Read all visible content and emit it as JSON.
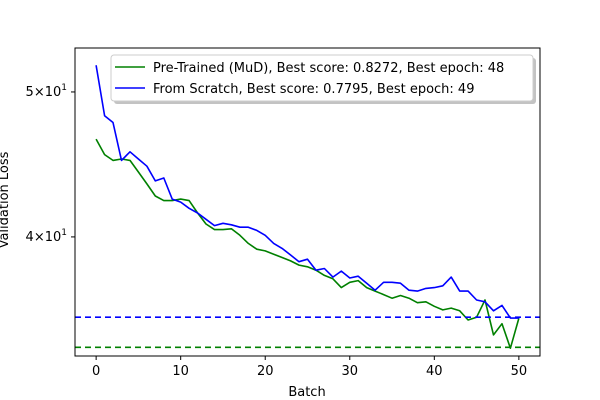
{
  "chart_data": {
    "type": "line",
    "title": "",
    "xlabel": "Batch",
    "ylabel": "Validation Loss",
    "yscale": "log",
    "xlim": [
      -2.5,
      52.5
    ],
    "ylim": [
      33.3,
      53.5
    ],
    "x_ticks": [
      0,
      10,
      20,
      30,
      40,
      50
    ],
    "x_tick_labels": [
      "0",
      "10",
      "20",
      "30",
      "40",
      "50"
    ],
    "y_ticks": [
      40,
      50
    ],
    "y_tick_label_mantissas": [
      "4",
      "5"
    ],
    "y_tick_label_times": "×",
    "y_tick_label_base": "10",
    "y_tick_label_exponent": "1",
    "grid": false,
    "legend_position": "upper-right",
    "x": [
      0,
      1,
      2,
      3,
      4,
      5,
      6,
      7,
      8,
      9,
      10,
      11,
      12,
      13,
      14,
      15,
      16,
      17,
      18,
      19,
      20,
      21,
      22,
      23,
      24,
      25,
      26,
      27,
      28,
      29,
      30,
      31,
      32,
      33,
      34,
      35,
      36,
      37,
      38,
      39,
      40,
      41,
      42,
      43,
      44,
      45,
      46,
      47,
      48,
      49,
      50
    ],
    "series": [
      {
        "name": "Pre-Trained (MuD), Best score: 0.8272, Best epoch: 48",
        "color": "#008000",
        "values": [
          46.5,
          45.4,
          45.0,
          45.1,
          45.0,
          44.2,
          43.4,
          42.6,
          42.3,
          42.3,
          42.4,
          42.3,
          41.5,
          40.8,
          40.45,
          40.45,
          40.5,
          40.1,
          39.6,
          39.25,
          39.15,
          38.95,
          38.75,
          38.55,
          38.3,
          38.2,
          38.0,
          37.7,
          37.5,
          37.0,
          37.3,
          37.4,
          37.0,
          36.8,
          36.6,
          36.4,
          36.55,
          36.4,
          36.15,
          36.2,
          35.95,
          35.75,
          35.85,
          35.7,
          35.2,
          35.35,
          36.3,
          34.4,
          35.0,
          33.7,
          35.3
        ],
        "baseline": 33.75
      },
      {
        "name": "From Scratch, Best score: 0.7795, Best epoch: 49",
        "color": "#0000ff",
        "values": [
          52.1,
          48.2,
          47.7,
          45.0,
          45.6,
          45.1,
          44.6,
          43.6,
          43.8,
          42.4,
          42.2,
          41.8,
          41.5,
          41.1,
          40.7,
          40.85,
          40.75,
          40.6,
          40.6,
          40.4,
          40.1,
          39.6,
          39.3,
          38.9,
          38.5,
          38.65,
          38.0,
          38.1,
          37.6,
          37.95,
          37.55,
          37.65,
          37.25,
          36.85,
          37.3,
          37.3,
          37.25,
          36.85,
          36.8,
          36.95,
          37.0,
          37.1,
          37.6,
          36.8,
          36.8,
          36.3,
          36.2,
          35.7,
          36.0,
          35.3,
          35.3
        ],
        "baseline": 35.35
      }
    ]
  }
}
